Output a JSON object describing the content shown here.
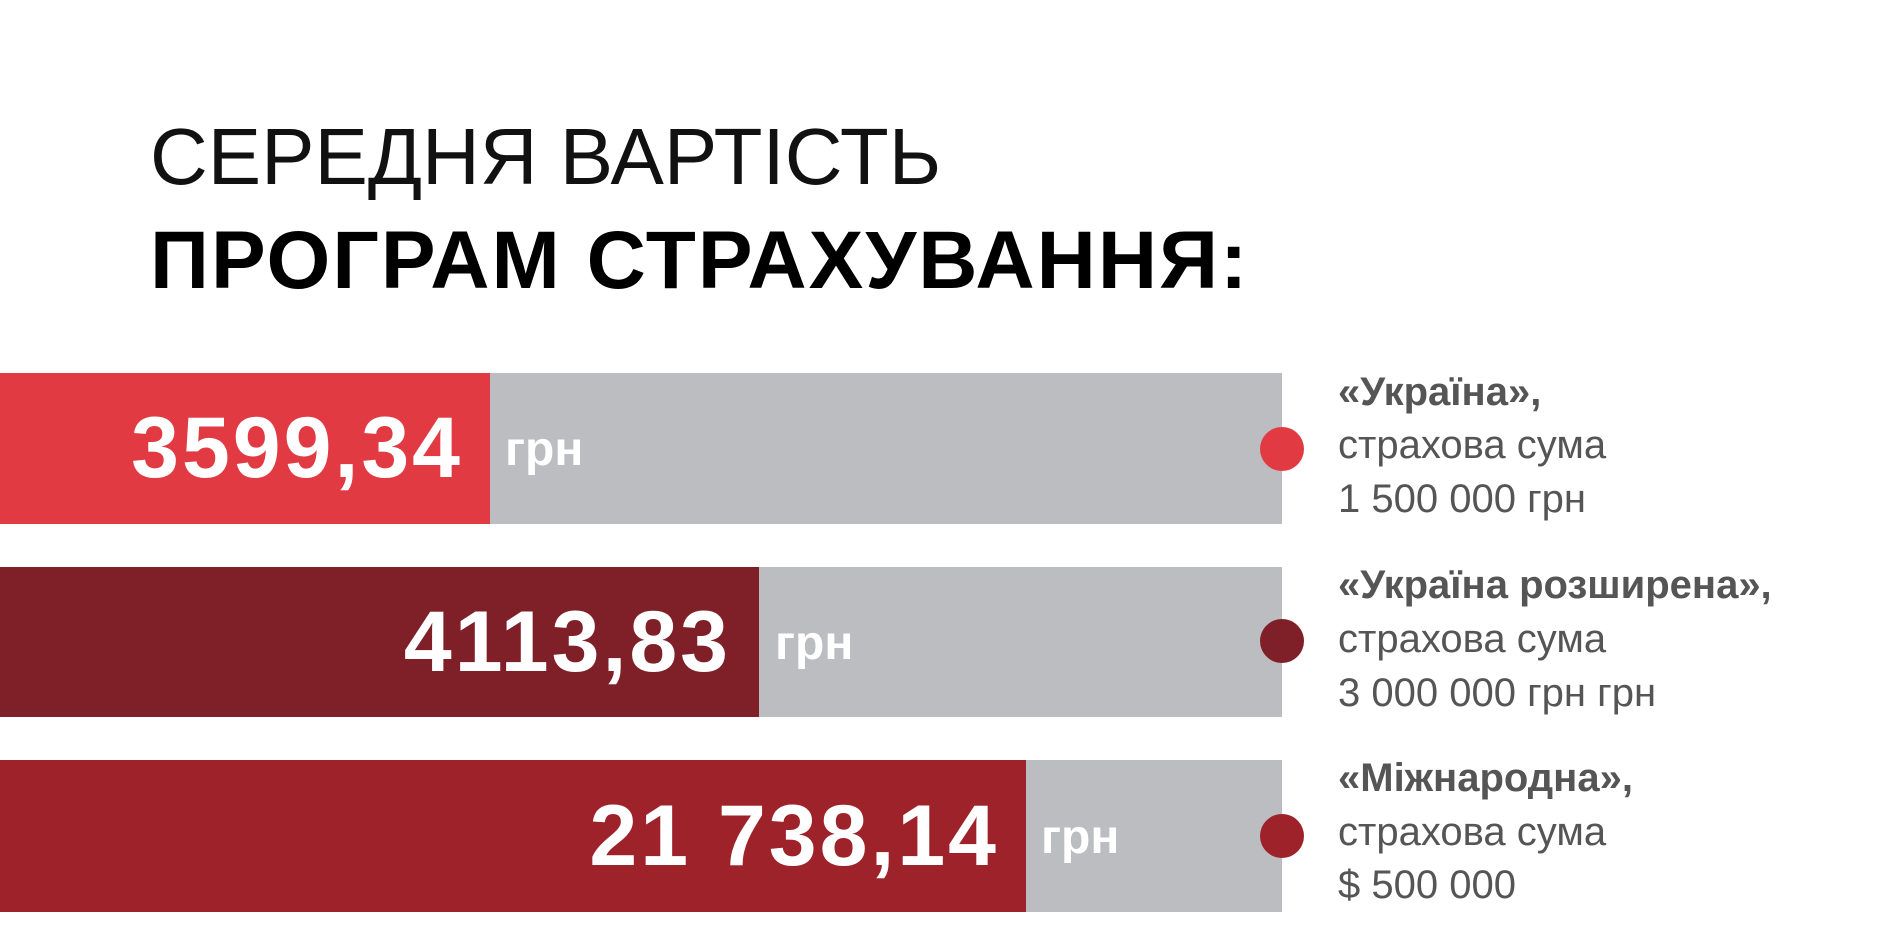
{
  "title": {
    "line1": "СЕРЕДНЯ ВАРТІСТЬ",
    "line2": "ПРОГРАМ СТРАХУВАННЯ:"
  },
  "items": [
    {
      "value": "3599,34",
      "unit": "грн",
      "name": "«Україна»,",
      "desc": "страхова сума",
      "sum": "1 500 000 грн"
    },
    {
      "value": "4113,83",
      "unit": "грн",
      "name": "«Україна розширена»,",
      "desc": "страхова сума",
      "sum": "3 000 000 грн грн"
    },
    {
      "value": "21 738,14",
      "unit": "грн",
      "name": "«Міжнародна»,",
      "desc": "страхова сума",
      "sum": "$ 500 000"
    }
  ]
}
